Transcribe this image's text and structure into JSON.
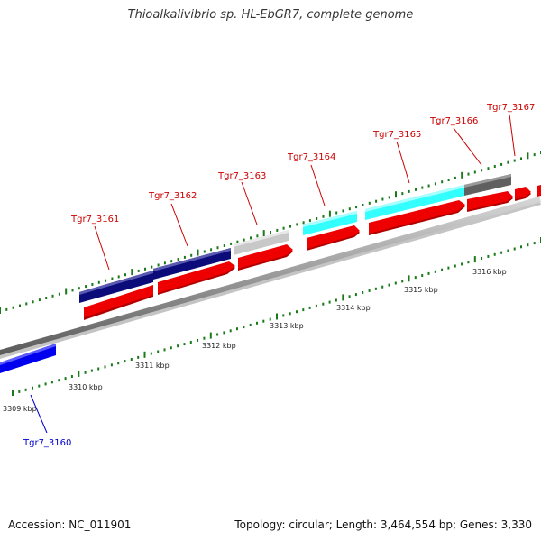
{
  "title": "Thioalkalivibrio sp. HL-EbGR7, complete genome",
  "footer": {
    "accession": "Accession: NC_011901",
    "topology": "Topology: circular; Length: 3,464,554 bp; Genes: 3,330"
  },
  "kbp_labels": [
    "3309 kbp",
    "3310 kbp",
    "3311 kbp",
    "3312 kbp",
    "3313 kbp",
    "3314 kbp",
    "3315 kbp",
    "3316 kbp"
  ],
  "genes": [
    {
      "label": "Tgr7_3160",
      "strand": "minus",
      "color": "#0000ee"
    },
    {
      "label": "Tgr7_3161",
      "strand": "plus",
      "color": "#0b0b7a"
    },
    {
      "label": "Tgr7_3162",
      "strand": "plus",
      "color": "#0b0b7a"
    },
    {
      "label": "Tgr7_3163",
      "strand": "plus",
      "color": "#c8c8c8"
    },
    {
      "label": "Tgr7_3164",
      "strand": "plus",
      "color": "#33ffff"
    },
    {
      "label": "Tgr7_3165",
      "strand": "plus",
      "color": "#33ffff"
    },
    {
      "label": "Tgr7_3166",
      "strand": "plus",
      "color": "#606060"
    },
    {
      "label": "Tgr7_3167",
      "strand": "plus",
      "color": "#ee0000"
    }
  ],
  "colors": {
    "cds": "#ee0000",
    "backbone": "#8c8c8c",
    "tick": "#1a7a1a",
    "label_plus": "#cc0000",
    "label_minus": "#0000cc"
  }
}
